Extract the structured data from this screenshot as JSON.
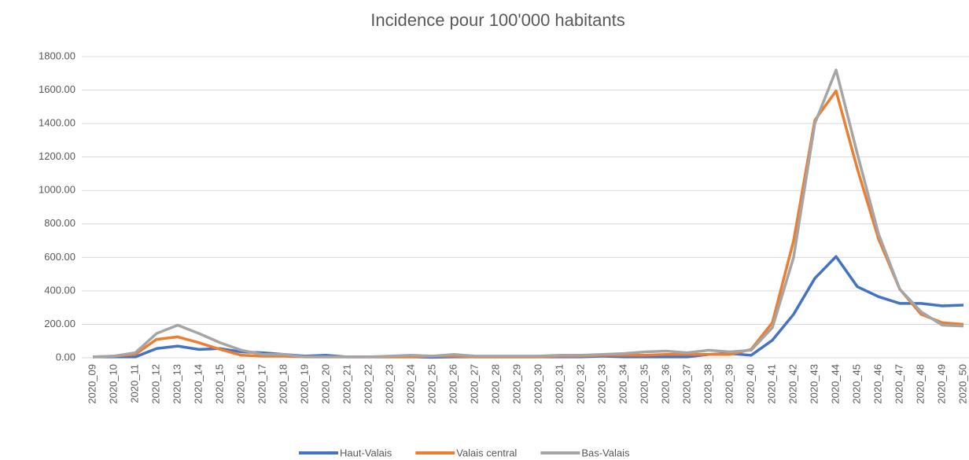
{
  "chart_data": {
    "type": "line",
    "title": "Incidence pour 100'000 habitants",
    "categories": [
      "2020_09",
      "2020_10",
      "2020_11",
      "2020_12",
      "2020_13",
      "2020_14",
      "2020_15",
      "2020_16",
      "2020_17",
      "2020_18",
      "2020_19",
      "2020_20",
      "2020_21",
      "2020_22",
      "2020_23",
      "2020_24",
      "2020_25",
      "2020_26",
      "2020_27",
      "2020_28",
      "2020_29",
      "2020_30",
      "2020_31",
      "2020_32",
      "2020_33",
      "2020_34",
      "2020_35",
      "2020_36",
      "2020_37",
      "2020_38",
      "2020_39",
      "2020_40",
      "2020_41",
      "2020_42",
      "2020_43",
      "2020_44",
      "2020_45",
      "2020_46",
      "2020_47",
      "2020_48",
      "2020_49",
      "2020_50"
    ],
    "series": [
      {
        "name": "Haut-Valais",
        "color": "#4472c4",
        "values": [
          5,
          5,
          5,
          55,
          70,
          50,
          55,
          35,
          30,
          20,
          10,
          15,
          5,
          5,
          5,
          5,
          3,
          5,
          5,
          5,
          5,
          5,
          5,
          5,
          10,
          5,
          5,
          5,
          5,
          20,
          25,
          15,
          105,
          260,
          475,
          605,
          425,
          365,
          325,
          325,
          310,
          315
        ]
      },
      {
        "name": "Valais central",
        "color": "#ed7d31",
        "values": [
          5,
          10,
          20,
          110,
          125,
          90,
          50,
          15,
          10,
          10,
          5,
          5,
          5,
          5,
          5,
          5,
          10,
          10,
          5,
          5,
          5,
          5,
          10,
          10,
          15,
          15,
          15,
          20,
          20,
          20,
          20,
          50,
          210,
          700,
          1420,
          1595,
          1130,
          710,
          410,
          260,
          210,
          200
        ]
      },
      {
        "name": "Bas-Valais",
        "color": "#a5a5a5",
        "values": [
          5,
          10,
          30,
          145,
          195,
          145,
          90,
          45,
          20,
          20,
          5,
          5,
          5,
          5,
          10,
          15,
          10,
          20,
          10,
          10,
          10,
          10,
          15,
          15,
          20,
          25,
          35,
          40,
          30,
          45,
          35,
          45,
          180,
          600,
          1400,
          1720,
          1220,
          740,
          410,
          275,
          195,
          190
        ]
      }
    ],
    "ylim": [
      0,
      1800
    ],
    "yticks": [
      {
        "value": 0,
        "label": "0.00"
      },
      {
        "value": 200,
        "label": "200.00"
      },
      {
        "value": 400,
        "label": "400.00"
      },
      {
        "value": 600,
        "label": "600.00"
      },
      {
        "value": 800,
        "label": "800.00"
      },
      {
        "value": 1000,
        "label": "1000.00"
      },
      {
        "value": 1200,
        "label": "1200.00"
      },
      {
        "value": 1400,
        "label": "1400.00"
      },
      {
        "value": 1600,
        "label": "1600.00"
      },
      {
        "value": 1800,
        "label": "1800.00"
      }
    ],
    "grid": true,
    "legend": "bottom"
  }
}
